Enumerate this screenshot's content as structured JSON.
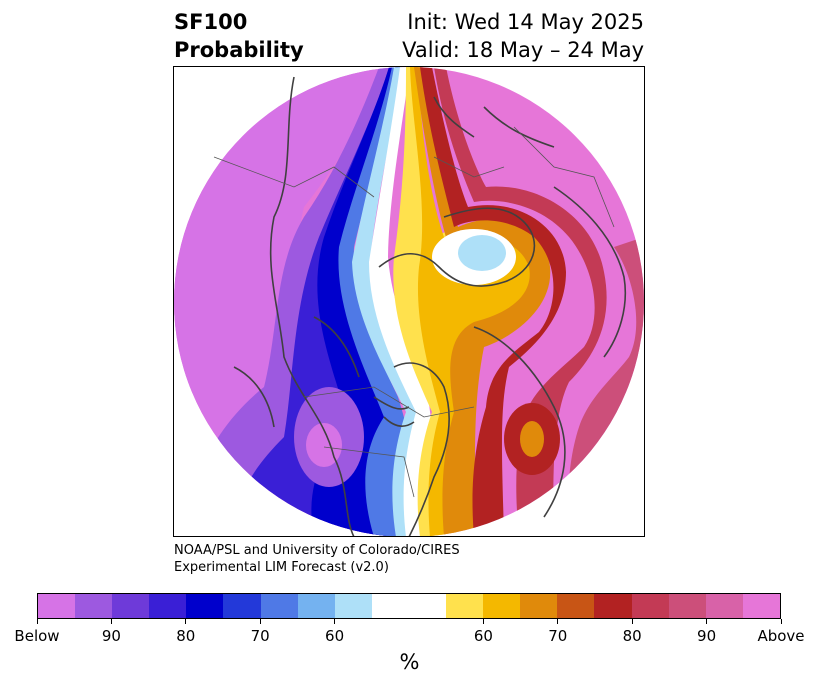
{
  "title": {
    "variable": "SF100",
    "kind": "Probability",
    "init": "Init: Wed 14 May 2025",
    "valid": "Valid: 18 May – 24 May"
  },
  "credit": {
    "line1": "NOAA/PSL and University of Colorado/CIRES",
    "line2": "Experimental LIM Forecast (v2.0)"
  },
  "colorbar": {
    "colors": [
      "#d673e6",
      "#9d59e0",
      "#6e3ad9",
      "#3a1fd6",
      "#0000cc",
      "#2339d9",
      "#4f79e6",
      "#74b2f0",
      "#aee0f8",
      "#ffffff",
      "#ffffff",
      "#ffe14d",
      "#f4b800",
      "#e08a0b",
      "#c85515",
      "#b22222",
      "#c33a55",
      "#cc4f7a",
      "#d862a8",
      "#e676d8"
    ],
    "tick_labels": [
      "Below",
      "90",
      "80",
      "70",
      "60",
      "60",
      "70",
      "80",
      "90",
      "Above"
    ],
    "unit": "%"
  },
  "map": {
    "projection": "north polar stereographic",
    "palette": {
      "below_far": "#d673e6",
      "below_90": "#9d59e0",
      "below_80": "#3a1fd6",
      "below_70": "#0000cc",
      "below_60": "#4f79e6",
      "below_light": "#aee0f8",
      "neutral": "#ffffff",
      "above_yellow": "#ffe14d",
      "above_60": "#f4b800",
      "above_70": "#e08a0b",
      "above_75": "#c85515",
      "above_80": "#b22222",
      "above_85": "#c33a55",
      "above_90": "#cc4f7a",
      "above_far": "#e676d8",
      "coast": "#404040"
    }
  }
}
